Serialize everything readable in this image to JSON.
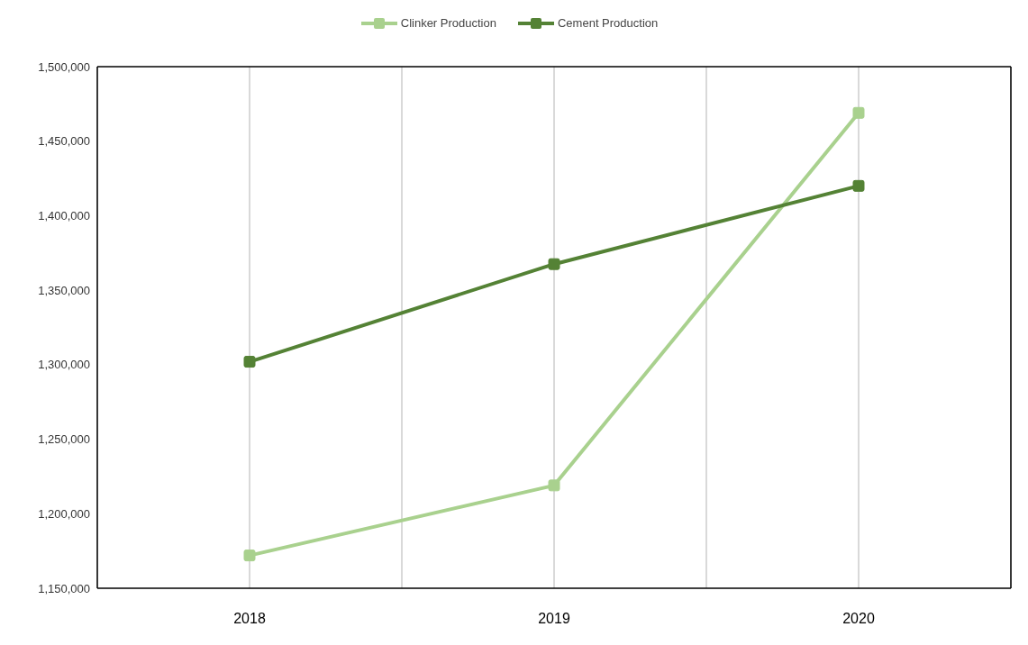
{
  "chart_data": {
    "type": "line",
    "x": [
      2018,
      2019,
      2020
    ],
    "series": [
      {
        "name": "Clinker Production",
        "color": "#a9d18e",
        "values": [
          1172000,
          1219000,
          1469000
        ]
      },
      {
        "name": "Cement Production",
        "color": "#548235",
        "values": [
          1302000,
          1367500,
          1420000
        ]
      }
    ],
    "xlim": [
      2017.5,
      2020.5
    ],
    "xticks": [
      2018,
      {
        "value": 2018.5,
        "label": null
      },
      2019,
      {
        "value": 2019.5,
        "label": null
      },
      2020
    ],
    "ylim": [
      1150000,
      1500000
    ],
    "yticks": [
      {
        "value": 1150000,
        "label": "1,150,000"
      },
      {
        "value": 1200000,
        "label": "1,200,000"
      },
      {
        "value": 1250000,
        "label": "1,250,000"
      },
      {
        "value": 1300000,
        "label": "1,300,000"
      },
      {
        "value": 1350000,
        "label": "1,350,000"
      },
      {
        "value": 1400000,
        "label": "1,400,000"
      },
      {
        "value": 1450000,
        "label": "1,450,000"
      },
      {
        "value": 1500000,
        "label": "1,500,000"
      }
    ],
    "grid": "x",
    "legend": "top",
    "marker": "square",
    "line_style": "solid"
  }
}
